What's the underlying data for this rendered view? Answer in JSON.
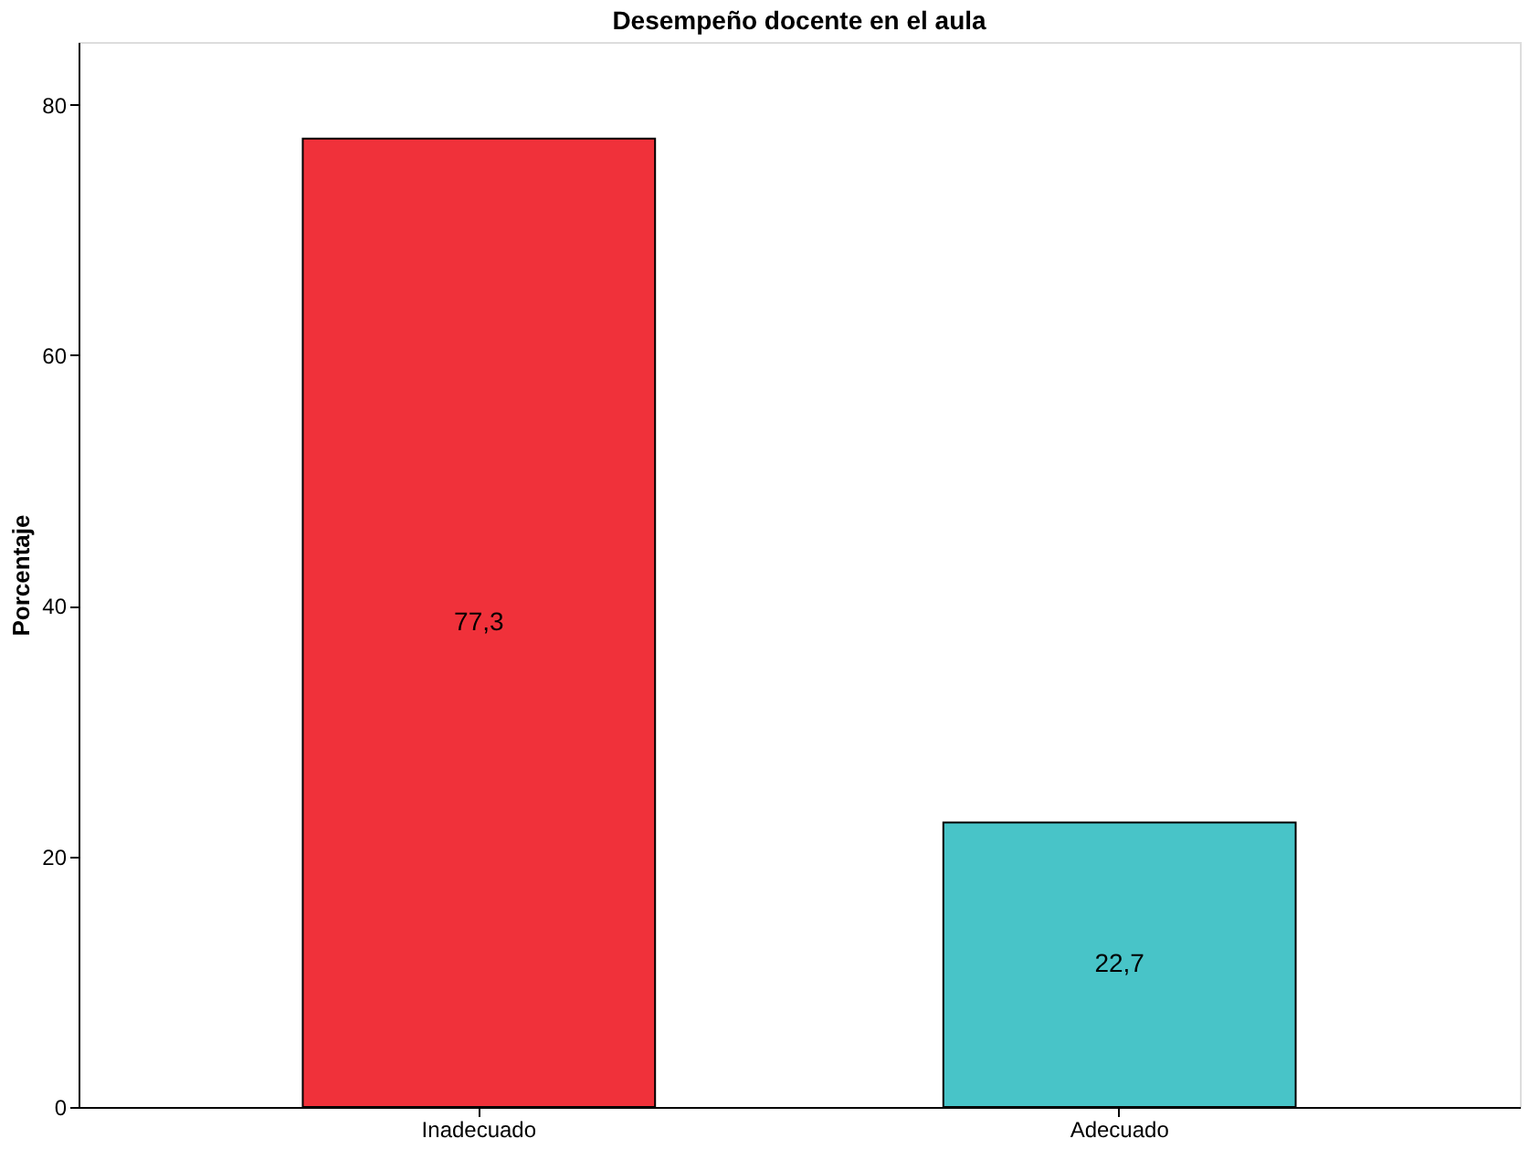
{
  "chart_data": {
    "type": "bar",
    "title": "Desempeño docente en el aula",
    "ylabel": "Porcentaje",
    "categories": [
      "Inadecuado",
      "Adecuado"
    ],
    "values": [
      77.3,
      22.7
    ],
    "colors": [
      "#f0313a",
      "#48c4c8"
    ],
    "value_labels": [
      "77,3",
      "22,7"
    ],
    "ylim": [
      0,
      85
    ],
    "yticks": [
      0,
      20,
      40,
      60,
      80
    ],
    "grid": false
  }
}
